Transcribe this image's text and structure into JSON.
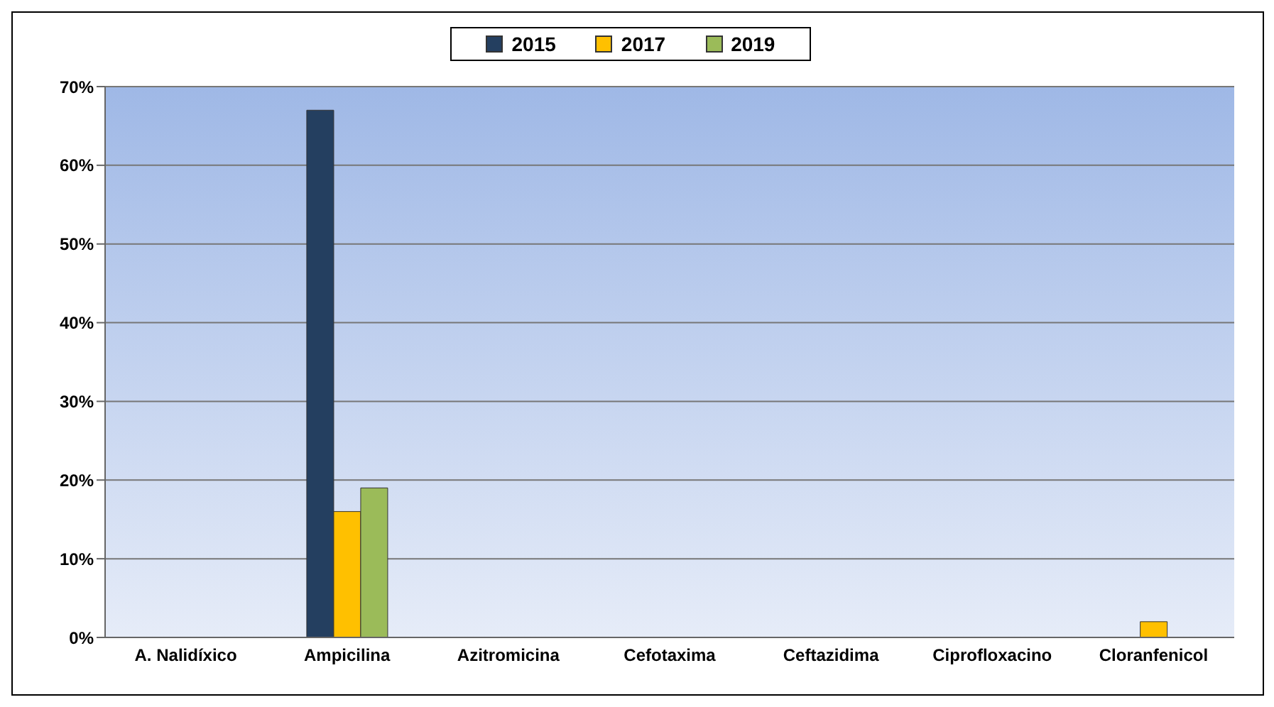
{
  "chart_data": {
    "type": "bar",
    "categories": [
      "A. Nalidíxico",
      "Ampicilina",
      "Azitromicina",
      "Cefotaxima",
      "Ceftazidima",
      "Ciprofloxacino",
      "Cloranfenicol"
    ],
    "series": [
      {
        "name": "2015",
        "color": "#243f60",
        "values": [
          0,
          67,
          0,
          0,
          0,
          0,
          0
        ]
      },
      {
        "name": "2017",
        "color": "#ffc000",
        "values": [
          0,
          16,
          0,
          0,
          0,
          0,
          2
        ]
      },
      {
        "name": "2019",
        "color": "#9bbb59",
        "values": [
          0,
          19,
          0,
          0,
          0,
          0,
          0
        ]
      }
    ],
    "ylim": [
      0,
      70
    ],
    "yticks": [
      {
        "value": 0,
        "label": "0%"
      },
      {
        "value": 10,
        "label": "10%"
      },
      {
        "value": 20,
        "label": "20%"
      },
      {
        "value": 30,
        "label": "30%"
      },
      {
        "value": 40,
        "label": "40%"
      },
      {
        "value": 50,
        "label": "50%"
      },
      {
        "value": 60,
        "label": "60%"
      },
      {
        "value": 70,
        "label": "70%"
      }
    ],
    "grid": "y",
    "legend": "top"
  }
}
